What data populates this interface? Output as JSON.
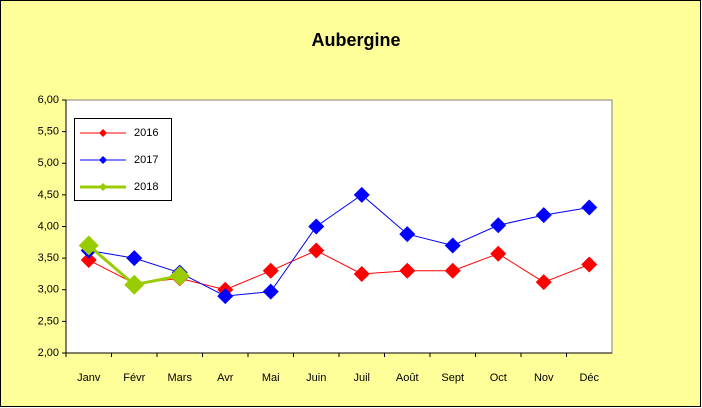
{
  "chart_data": {
    "type": "line",
    "title": "Aubergine",
    "categories": [
      "Janv",
      "Févr",
      "Mars",
      "Avr",
      "Mai",
      "Juin",
      "Juil",
      "Août",
      "Sept",
      "Oct",
      "Nov",
      "Déc"
    ],
    "series": [
      {
        "name": "2016",
        "color": "#ff0000",
        "values": [
          3.47,
          3.1,
          3.18,
          3.0,
          3.3,
          3.62,
          3.25,
          3.3,
          3.3,
          3.57,
          3.12,
          3.4
        ]
      },
      {
        "name": "2017",
        "color": "#0000ff",
        "values": [
          3.62,
          3.5,
          3.27,
          2.9,
          2.97,
          4.0,
          4.5,
          3.88,
          3.7,
          4.02,
          4.18,
          4.3
        ]
      },
      {
        "name": "2018",
        "color": "#99cc00",
        "values": [
          3.7,
          3.08,
          3.22,
          null,
          null,
          null,
          null,
          null,
          null,
          null,
          null,
          null
        ]
      }
    ],
    "ylim": [
      2,
      6
    ],
    "yticks": [
      {
        "value": 2,
        "label": "2,00"
      },
      {
        "value": 2.5,
        "label": "2,50"
      },
      {
        "value": 3,
        "label": "3,00"
      },
      {
        "value": 3.5,
        "label": "3,50"
      },
      {
        "value": 4,
        "label": "4,00"
      },
      {
        "value": 4.5,
        "label": "4,50"
      },
      {
        "value": 5,
        "label": "5,00"
      },
      {
        "value": 5.5,
        "label": "5,50"
      },
      {
        "value": 6,
        "label": "6,00"
      }
    ],
    "legend": "upper left"
  }
}
